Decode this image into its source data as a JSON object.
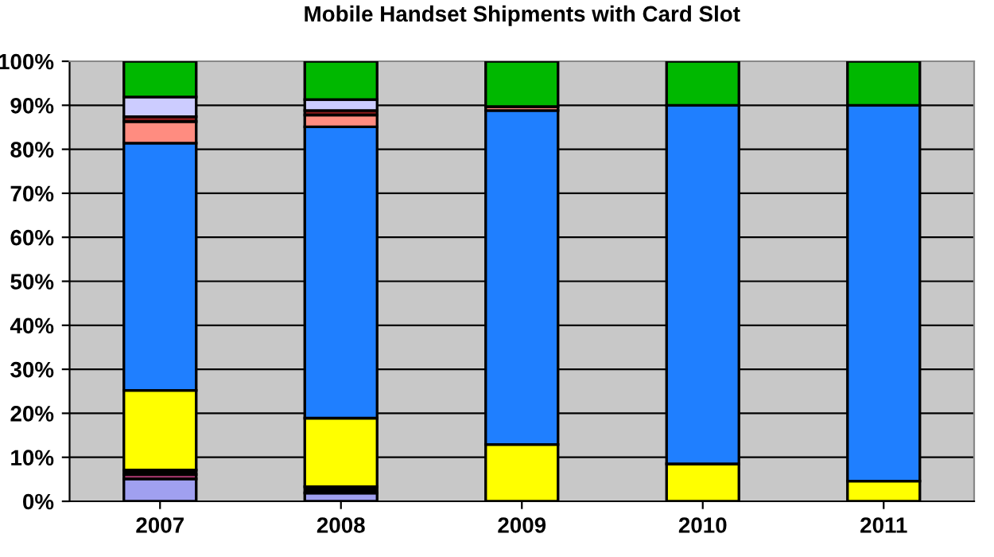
{
  "chart_data": {
    "type": "bar",
    "stacked": true,
    "title": "Mobile Handset Shipments with Card Slot",
    "categories": [
      "2007",
      "2008",
      "2009",
      "2010",
      "2011"
    ],
    "series": [
      {
        "color": "#a0a0f0",
        "values": [
          5.1,
          1.9,
          0,
          0,
          0
        ]
      },
      {
        "color": "#993366",
        "values": [
          1.0,
          null,
          0,
          0,
          0
        ]
      },
      {
        "color": "#000000",
        "values": [
          1.0,
          1.4,
          null,
          0,
          0
        ]
      },
      {
        "color": "#ffff00",
        "values": [
          18.1,
          15.6,
          12.9,
          8.5,
          4.6
        ]
      },
      {
        "color": "#1f7fff",
        "values": [
          56.2,
          66.2,
          75.9,
          81.5,
          85.4
        ]
      },
      {
        "color": "#ff8c80",
        "values": [
          4.9,
          2.7,
          0.9,
          0,
          0
        ]
      },
      {
        "color": "#8b1a1a",
        "values": [
          1.1,
          1.0,
          0,
          0,
          0
        ]
      },
      {
        "color": "#ccccff",
        "values": [
          4.5,
          2.5,
          0,
          0,
          0
        ]
      },
      {
        "color": "#00b800",
        "values": [
          8.1,
          8.7,
          10.3,
          10.0,
          10.0
        ]
      }
    ],
    "ylim": [
      0,
      100
    ],
    "yticks": [
      {
        "value": 0,
        "label": "0%"
      },
      {
        "value": 10,
        "label": "10%"
      },
      {
        "value": 20,
        "label": "20%"
      },
      {
        "value": 30,
        "label": "30%"
      },
      {
        "value": 40,
        "label": "40%"
      },
      {
        "value": 50,
        "label": "50%"
      },
      {
        "value": 60,
        "label": "60%"
      },
      {
        "value": 70,
        "label": "70%"
      },
      {
        "value": 80,
        "label": "80%"
      },
      {
        "value": 90,
        "label": "90%"
      },
      {
        "value": 100,
        "label": "100%"
      }
    ],
    "grid": "y",
    "legend": false
  }
}
